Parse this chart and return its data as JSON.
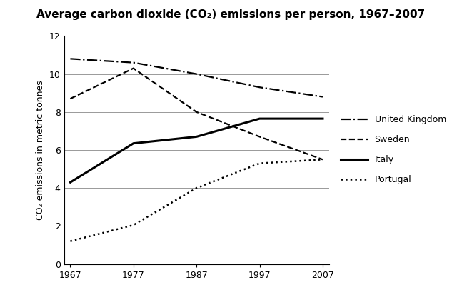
{
  "title": "Average carbon dioxide (CO₂) emissions per person, 1967–2007",
  "ylabel": "CO₂ emissions in metric tonnes",
  "years": [
    1967,
    1977,
    1987,
    1997,
    2007
  ],
  "series": {
    "United Kingdom": {
      "values": [
        10.8,
        10.6,
        10.0,
        9.3,
        8.8
      ],
      "linestyle": "-.",
      "color": "#000000",
      "linewidth": 1.6
    },
    "Sweden": {
      "values": [
        8.7,
        10.3,
        8.0,
        6.7,
        5.5
      ],
      "linestyle": "--",
      "color": "#000000",
      "linewidth": 1.6
    },
    "Italy": {
      "values": [
        4.3,
        6.35,
        6.7,
        7.65,
        7.65
      ],
      "linestyle": "-",
      "color": "#000000",
      "linewidth": 2.2
    },
    "Portugal": {
      "values": [
        1.2,
        2.05,
        4.0,
        5.3,
        5.5
      ],
      "linestyle": ":",
      "color": "#000000",
      "linewidth": 1.8
    }
  },
  "ylim": [
    0,
    12
  ],
  "yticks": [
    0,
    2,
    4,
    6,
    8,
    10,
    12
  ],
  "xticks": [
    1967,
    1977,
    1987,
    1997,
    2007
  ],
  "background_color": "#ffffff",
  "grid_color": "#999999",
  "title_fontsize": 11,
  "legend_fontsize": 9,
  "axis_label_fontsize": 9,
  "tick_fontsize": 9
}
